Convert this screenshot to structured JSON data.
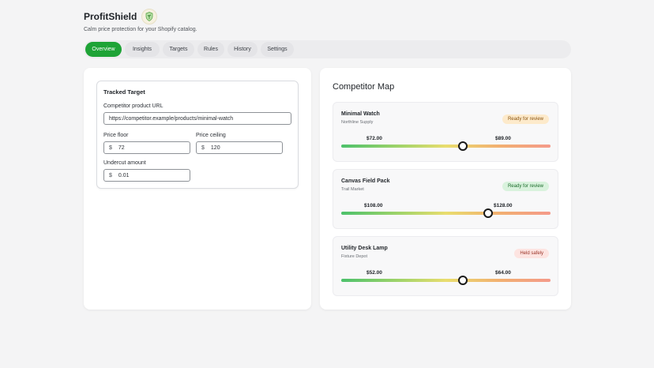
{
  "app": {
    "title": "ProfitShield",
    "subtitle": "Calm price protection for your Shopify catalog.",
    "logo_icon": "shield-plant-logo"
  },
  "tabs": [
    {
      "label": "Overview",
      "active": true
    },
    {
      "label": "Insights",
      "active": false
    },
    {
      "label": "Targets",
      "active": false
    },
    {
      "label": "Rules",
      "active": false
    },
    {
      "label": "History",
      "active": false
    },
    {
      "label": "Settings",
      "active": false
    }
  ],
  "tracked_target": {
    "title": "Tracked Target",
    "url_label": "Competitor product URL",
    "url_value": "https://competitor.example/products/minimal-watch",
    "floor_label": "Price floor",
    "floor_value": "72",
    "ceiling_label": "Price ceiling",
    "ceiling_value": "120",
    "undercut_label": "Undercut amount",
    "undercut_value": "0.01",
    "currency_prefix": "$"
  },
  "competitor_map": {
    "title": "Competitor Map",
    "items": [
      {
        "name": "Minimal Watch",
        "vendor": "Northline Supply",
        "status": "Ready for review",
        "low": "$72.00",
        "high": "$89.00",
        "position": 0.58
      },
      {
        "name": "Canvas Field Pack",
        "vendor": "Trail Market",
        "status": "Ready for review",
        "low": "$108.00",
        "high": "$128.00",
        "position": 0.7
      },
      {
        "name": "Utility Desk Lamp",
        "vendor": "Fixture Depot",
        "status": "Held safely",
        "low": "$52.00",
        "high": "$64.00",
        "position": 0.58
      }
    ]
  },
  "colors": {
    "accent": "#1ea336",
    "badge_review": "#fdeacb",
    "badge_review_green": "#d9f2dd",
    "badge_held": "#fde4e1"
  }
}
